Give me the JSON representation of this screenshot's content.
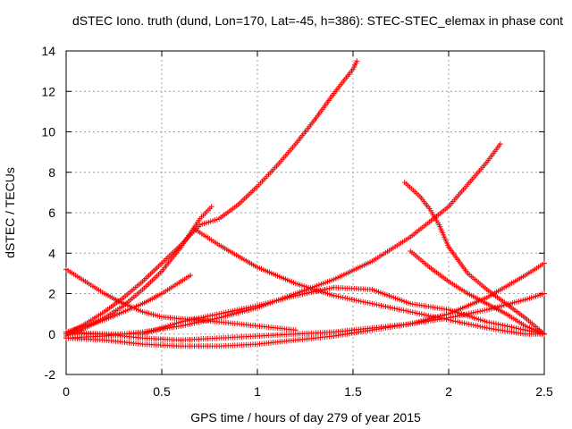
{
  "chart_data": {
    "type": "scatter",
    "title": "dSTEC Iono. truth (dund, Lon=170, Lat=-45, h=386): STEC-STEC_elemax in phase cont",
    "xlabel": "GPS time / hours of day 279 of year 2015",
    "ylabel": "dSTEC  / TECUs",
    "xlim": [
      0,
      2.5
    ],
    "ylim": [
      -2,
      14
    ],
    "xticks": [
      0,
      0.5,
      1,
      1.5,
      2,
      2.5
    ],
    "xtick_labels": [
      "0",
      "0.5",
      "1",
      "1.5",
      "2",
      "2.5"
    ],
    "yticks": [
      -2,
      0,
      2,
      4,
      6,
      8,
      10,
      12,
      14
    ],
    "ytick_labels": [
      "-2",
      "0",
      "2",
      "4",
      "6",
      "8",
      "10",
      "12",
      "14"
    ],
    "grid": true,
    "marker": "+",
    "color": "#ff0000",
    "series": [
      {
        "x": [
          0,
          0.1,
          0.2,
          0.3,
          0.4,
          0.5,
          0.6,
          0.7,
          0.8,
          0.9,
          1.0,
          1.1,
          1.2,
          1.3,
          1.4,
          1.5,
          1.52
        ],
        "y": [
          0,
          0.5,
          1.1,
          1.8,
          2.6,
          3.5,
          4.4,
          5.4,
          5.7,
          6.4,
          7.3,
          8.3,
          9.4,
          10.6,
          11.9,
          13.1,
          13.5
        ]
      },
      {
        "x": [
          0,
          0.1,
          0.2,
          0.3,
          0.4,
          0.5,
          0.6,
          0.7,
          0.76
        ],
        "y": [
          -0.1,
          0.3,
          0.8,
          1.4,
          2.2,
          3.1,
          4.3,
          5.7,
          6.3
        ]
      },
      {
        "x": [
          0,
          0.1,
          0.2,
          0.3,
          0.4,
          0.5,
          0.6,
          0.65
        ],
        "y": [
          0.1,
          0.4,
          0.7,
          1.1,
          1.5,
          2.0,
          2.6,
          2.9
        ]
      },
      {
        "x": [
          0,
          0.2,
          0.4,
          0.6,
          0.8,
          1.0,
          1.2,
          1.4,
          1.6,
          1.8,
          2.0,
          2.2,
          2.27
        ],
        "y": [
          -0.2,
          -0.1,
          0.1,
          0.4,
          0.8,
          1.3,
          2.0,
          2.7,
          3.6,
          4.8,
          6.3,
          8.5,
          9.4
        ]
      },
      {
        "x": [
          0,
          0.1,
          0.2,
          0.3,
          0.4,
          0.5,
          0.6,
          0.7,
          0.8,
          1.0,
          1.2
        ],
        "y": [
          3.2,
          2.6,
          2.0,
          1.5,
          1.1,
          0.85,
          0.75,
          0.7,
          0.6,
          0.4,
          0.2
        ]
      },
      {
        "x": [
          0.67,
          0.8,
          1.0,
          1.2,
          1.4,
          1.6,
          1.8,
          2.0,
          2.2,
          2.4,
          2.5
        ],
        "y": [
          5.2,
          4.4,
          3.3,
          2.5,
          1.9,
          1.5,
          1.1,
          0.7,
          0.3,
          0.0,
          0.0
        ]
      },
      {
        "x": [
          0,
          0.2,
          0.4,
          0.6,
          0.8,
          1.0,
          1.2,
          1.4,
          1.6,
          1.8,
          2.0,
          2.2,
          2.4,
          2.5
        ],
        "y": [
          0.1,
          0.0,
          -0.2,
          -0.3,
          -0.2,
          -0.1,
          0.0,
          0.1,
          0.3,
          0.5,
          0.8,
          1.2,
          1.7,
          2.0
        ]
      },
      {
        "x": [
          0,
          0.2,
          0.4,
          0.5,
          0.6,
          0.8,
          1.0,
          1.2,
          1.4,
          1.6,
          1.8,
          2.0,
          2.2,
          2.4,
          2.5
        ],
        "y": [
          0.0,
          0.0,
          0.0,
          0.3,
          0.6,
          1.0,
          1.4,
          1.9,
          2.3,
          2.2,
          1.5,
          1.2,
          0.6,
          0.2,
          0.0
        ]
      },
      {
        "x": [
          0,
          0.2,
          0.4,
          0.6,
          0.8,
          1.0,
          1.2,
          1.4,
          1.6,
          1.8,
          2.0,
          2.2,
          2.4,
          2.5
        ],
        "y": [
          -0.2,
          -0.3,
          -0.5,
          -0.6,
          -0.6,
          -0.5,
          -0.3,
          -0.1,
          0.2,
          0.5,
          1.0,
          1.8,
          2.9,
          3.5
        ]
      },
      {
        "x": [
          1.77,
          1.85,
          1.9,
          1.95,
          2.0,
          2.1,
          2.2,
          2.3,
          2.4,
          2.5
        ],
        "y": [
          7.5,
          6.8,
          6.2,
          5.4,
          4.3,
          3.0,
          2.2,
          1.5,
          0.8,
          0.0
        ]
      },
      {
        "x": [
          1.8,
          1.9,
          2.0,
          2.1,
          2.2,
          2.3,
          2.4,
          2.5
        ],
        "y": [
          4.1,
          3.3,
          2.6,
          2.0,
          1.5,
          1.0,
          0.4,
          0.0
        ]
      }
    ]
  }
}
